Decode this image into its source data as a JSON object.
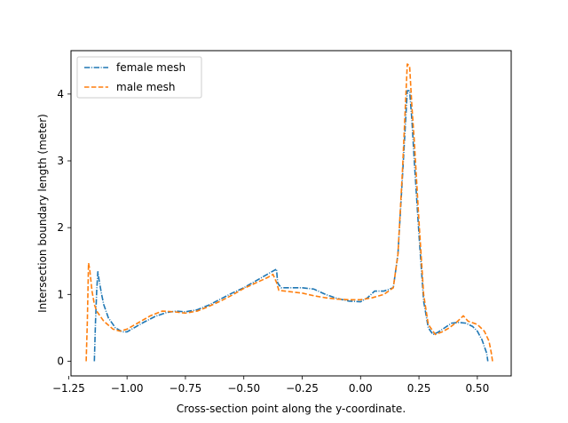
{
  "chart_data": {
    "type": "line",
    "xlabel": "Cross-section point along the y-coordinate.",
    "ylabel": "Intersection boundary length (meter)",
    "xlim": [
      -1.24,
      0.645
    ],
    "ylim": [
      -0.22,
      4.65
    ],
    "xticks": [
      {
        "value": -1.25,
        "label": "−1.25"
      },
      {
        "value": -1.0,
        "label": "−1.00"
      },
      {
        "value": -0.75,
        "label": "−0.75"
      },
      {
        "value": -0.5,
        "label": "−0.50"
      },
      {
        "value": -0.25,
        "label": "−0.25"
      },
      {
        "value": 0.0,
        "label": "0.00"
      },
      {
        "value": 0.25,
        "label": "0.25"
      },
      {
        "value": 0.5,
        "label": "0.50"
      }
    ],
    "yticks": [
      {
        "value": 0,
        "label": "0"
      },
      {
        "value": 1,
        "label": "1"
      },
      {
        "value": 2,
        "label": "2"
      },
      {
        "value": 3,
        "label": "3"
      },
      {
        "value": 4,
        "label": "4"
      }
    ],
    "grid": false,
    "legend_position": "top-left",
    "series": [
      {
        "name": "female mesh",
        "color": "#1f77b4",
        "linestyle": "dashdot",
        "x": [
          -1.14,
          -1.135,
          -1.13,
          -1.125,
          -1.12,
          -1.11,
          -1.1,
          -1.08,
          -1.05,
          -1.02,
          -1.0,
          -0.97,
          -0.93,
          -0.88,
          -0.83,
          -0.79,
          -0.75,
          -0.7,
          -0.65,
          -0.6,
          -0.55,
          -0.5,
          -0.45,
          -0.4,
          -0.36,
          -0.355,
          -0.34,
          -0.3,
          -0.25,
          -0.2,
          -0.15,
          -0.1,
          -0.05,
          0.0,
          0.03,
          0.06,
          0.1,
          0.14,
          0.16,
          0.18,
          0.2,
          0.21,
          0.22,
          0.23,
          0.25,
          0.27,
          0.29,
          0.31,
          0.33,
          0.36,
          0.39,
          0.42,
          0.45,
          0.48,
          0.5,
          0.52,
          0.54,
          0.545
        ],
        "y": [
          0.0,
          0.6,
          1.05,
          1.34,
          1.22,
          1.02,
          0.85,
          0.65,
          0.5,
          0.44,
          0.44,
          0.5,
          0.58,
          0.67,
          0.73,
          0.75,
          0.74,
          0.77,
          0.84,
          0.93,
          1.02,
          1.1,
          1.2,
          1.3,
          1.38,
          1.17,
          1.1,
          1.1,
          1.1,
          1.08,
          1.0,
          0.94,
          0.9,
          0.89,
          0.95,
          1.05,
          1.05,
          1.1,
          1.6,
          2.8,
          4.05,
          4.05,
          3.6,
          3.0,
          1.9,
          0.9,
          0.5,
          0.4,
          0.43,
          0.5,
          0.57,
          0.58,
          0.57,
          0.52,
          0.45,
          0.32,
          0.12,
          0.0
        ]
      },
      {
        "name": "male mesh",
        "color": "#ff7f0e",
        "linestyle": "dashed",
        "x": [
          -1.175,
          -1.17,
          -1.165,
          -1.16,
          -1.15,
          -1.14,
          -1.13,
          -1.1,
          -1.06,
          -1.03,
          -1.0,
          -0.95,
          -0.9,
          -0.85,
          -0.8,
          -0.75,
          -0.7,
          -0.65,
          -0.6,
          -0.55,
          -0.5,
          -0.45,
          -0.4,
          -0.375,
          -0.36,
          -0.35,
          -0.3,
          -0.25,
          -0.2,
          -0.15,
          -0.1,
          -0.05,
          0.0,
          0.05,
          0.1,
          0.14,
          0.16,
          0.18,
          0.2,
          0.21,
          0.22,
          0.23,
          0.25,
          0.27,
          0.29,
          0.32,
          0.35,
          0.38,
          0.41,
          0.44,
          0.46,
          0.5,
          0.53,
          0.55,
          0.56,
          0.565
        ],
        "y": [
          0.0,
          0.6,
          1.47,
          1.38,
          1.05,
          0.85,
          0.75,
          0.6,
          0.48,
          0.45,
          0.48,
          0.58,
          0.68,
          0.75,
          0.74,
          0.72,
          0.75,
          0.82,
          0.9,
          0.99,
          1.09,
          1.17,
          1.25,
          1.3,
          1.18,
          1.06,
          1.04,
          1.02,
          0.98,
          0.95,
          0.93,
          0.92,
          0.92,
          0.95,
          1.0,
          1.1,
          1.6,
          2.9,
          4.45,
          4.42,
          3.8,
          3.3,
          2.1,
          1.0,
          0.55,
          0.4,
          0.44,
          0.5,
          0.58,
          0.68,
          0.6,
          0.55,
          0.45,
          0.3,
          0.12,
          0.0
        ]
      }
    ]
  }
}
